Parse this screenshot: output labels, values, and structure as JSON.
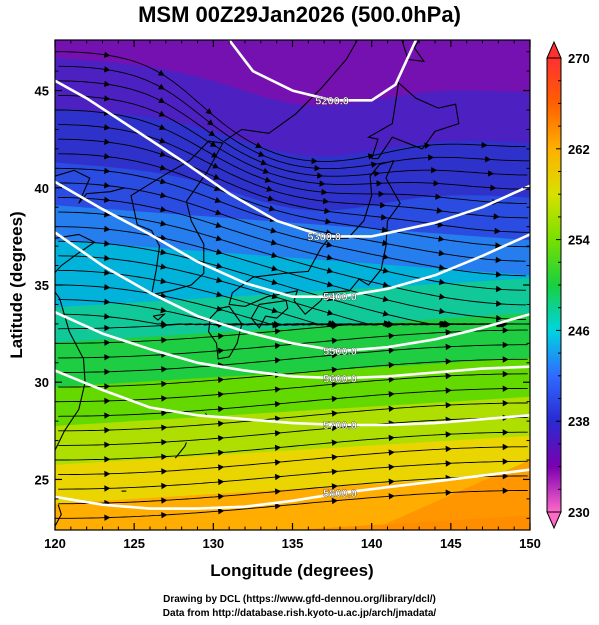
{
  "title": "MSM 00Z29Jan2026 (500.0hPa)",
  "xlabel": "Longitude (degrees)",
  "ylabel": "Latitude  (degrees)",
  "credits": {
    "line1": "Drawing by DCL (https://www.gfd-dennou.org/library/dcl/)",
    "line2": "Data from http://database.rish.kyoto-u.ac.jp/arch/jmadata/"
  },
  "chart_data": {
    "type": "heatmap",
    "x_range": [
      120,
      150
    ],
    "y_range": [
      22.4,
      47.6
    ],
    "x_ticks": [
      "120",
      "125",
      "130",
      "135",
      "140",
      "145",
      "150"
    ],
    "y_ticks": [
      "25",
      "30",
      "35",
      "40",
      "45"
    ],
    "colorbar": {
      "min": 230,
      "max": 270,
      "tick_labels": [
        "230",
        "238",
        "246",
        "254",
        "262",
        "270"
      ],
      "stops": [
        "#ff69c8",
        "#7a00b0",
        "#2a2ad0",
        "#2f6aff",
        "#00d4e0",
        "#18d040",
        "#78e000",
        "#d8e000",
        "#ffb000",
        "#ff6000",
        "#ff3030"
      ]
    },
    "contours": [
      {
        "label": "5200.0",
        "points": [
          [
            131,
            47.6
          ],
          [
            132.5,
            46
          ],
          [
            135,
            45
          ],
          [
            137.5,
            44.5
          ],
          [
            140,
            44.5
          ],
          [
            141.5,
            45.3
          ],
          [
            142.8,
            47.6
          ]
        ]
      },
      {
        "label": "5300.0",
        "points": [
          [
            120,
            45.5
          ],
          [
            122,
            44.6
          ],
          [
            125,
            43
          ],
          [
            128,
            41.4
          ],
          [
            131,
            39.7
          ],
          [
            134,
            38.3
          ],
          [
            137,
            37.5
          ],
          [
            140,
            37.5
          ],
          [
            144,
            38.2
          ],
          [
            147,
            39
          ],
          [
            150,
            40.1
          ]
        ]
      },
      {
        "label": "5400.0",
        "points": [
          [
            120,
            40.3
          ],
          [
            123,
            38.9
          ],
          [
            126,
            37.6
          ],
          [
            129,
            36.2
          ],
          [
            132,
            35.1
          ],
          [
            135,
            34.4
          ],
          [
            138,
            34.4
          ],
          [
            141,
            34.8
          ],
          [
            144,
            35.5
          ],
          [
            147,
            36.5
          ],
          [
            150,
            37.6
          ]
        ]
      },
      {
        "label": "5500.0",
        "points": [
          [
            120,
            37.7
          ],
          [
            123,
            36
          ],
          [
            126,
            34.6
          ],
          [
            129,
            33.4
          ],
          [
            132,
            32.6
          ],
          [
            135,
            32
          ],
          [
            138,
            31.6
          ],
          [
            141,
            31.8
          ],
          [
            144,
            32.2
          ],
          [
            147,
            32.8
          ],
          [
            150,
            33.5
          ]
        ]
      },
      {
        "label": "5600.0",
        "points": [
          [
            120,
            33.6
          ],
          [
            123,
            32.5
          ],
          [
            126,
            31.7
          ],
          [
            129,
            31
          ],
          [
            132,
            30.6
          ],
          [
            135,
            30.3
          ],
          [
            138,
            30.2
          ],
          [
            141,
            30.3
          ],
          [
            144,
            30.5
          ],
          [
            147,
            30.7
          ],
          [
            150,
            30.8
          ]
        ]
      },
      {
        "label": "5700.0",
        "points": [
          [
            120,
            30.6
          ],
          [
            123,
            29.6
          ],
          [
            126,
            28.7
          ],
          [
            129,
            28.3
          ],
          [
            132,
            28.1
          ],
          [
            135,
            27.9
          ],
          [
            138,
            27.8
          ],
          [
            141,
            27.8
          ],
          [
            144,
            27.9
          ],
          [
            147,
            28.1
          ],
          [
            150,
            28.3
          ]
        ]
      },
      {
        "label": "5800.0",
        "points": [
          [
            120,
            24.1
          ],
          [
            123,
            23.7
          ],
          [
            126,
            23.5
          ],
          [
            129,
            23.5
          ],
          [
            132,
            23.6
          ],
          [
            135,
            23.9
          ],
          [
            138,
            24.3
          ],
          [
            141,
            24.6
          ],
          [
            144,
            24.9
          ],
          [
            147,
            25.2
          ],
          [
            150,
            25.5
          ]
        ]
      }
    ]
  }
}
